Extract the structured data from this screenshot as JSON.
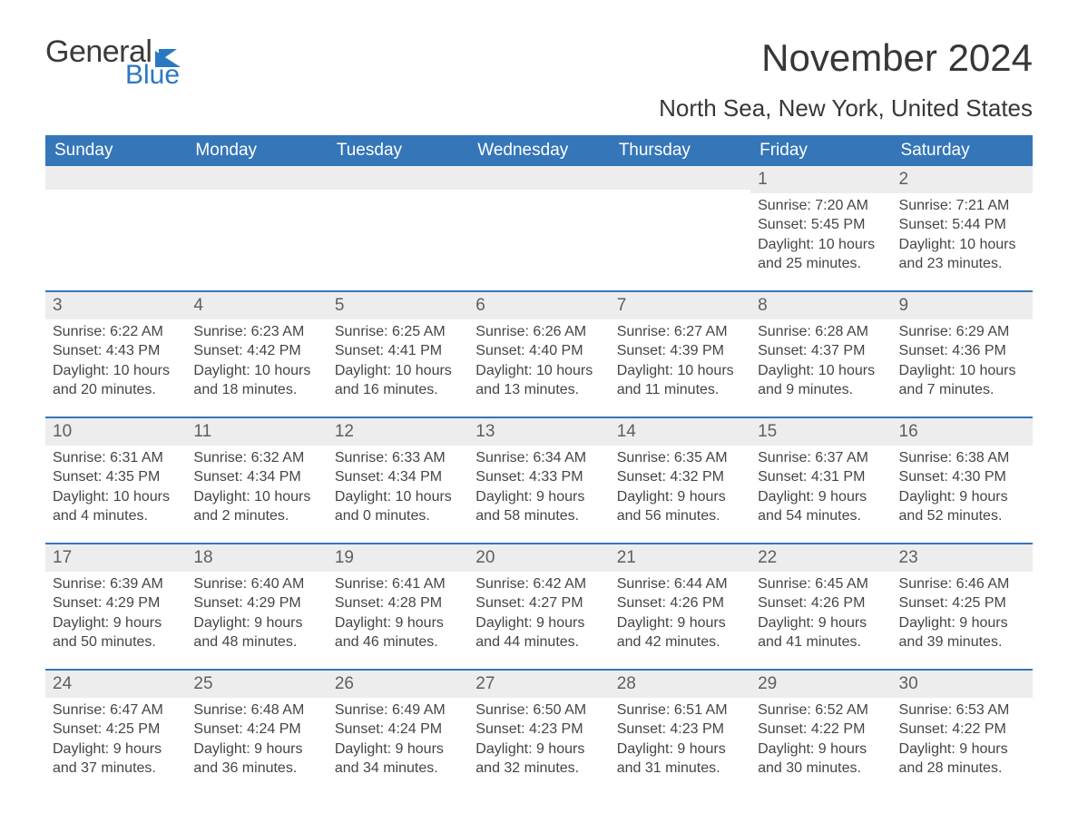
{
  "logo": {
    "word1": "General",
    "word2": "Blue"
  },
  "title": "November 2024",
  "subtitle": "North Sea, New York, United States",
  "colors": {
    "header_bg": "#3576b9",
    "header_fg": "#ffffff",
    "row_divider": "#3576b9",
    "daynum_bg": "#ededed",
    "text": "#454545",
    "logo_blue": "#2b78c2"
  },
  "fonts": {
    "title_size": 42,
    "subtitle_size": 26,
    "dow_size": 19,
    "body_size": 16
  },
  "day_labels": [
    "Sunday",
    "Monday",
    "Tuesday",
    "Wednesday",
    "Thursday",
    "Friday",
    "Saturday"
  ],
  "sunrise_prefix": "Sunrise: ",
  "sunset_prefix": "Sunset: ",
  "daylight_prefix": "Daylight: ",
  "weeks": [
    [
      null,
      null,
      null,
      null,
      null,
      {
        "n": "1",
        "sunrise": "7:20 AM",
        "sunset": "5:45 PM",
        "daylight": "10 hours and 25 minutes."
      },
      {
        "n": "2",
        "sunrise": "7:21 AM",
        "sunset": "5:44 PM",
        "daylight": "10 hours and 23 minutes."
      }
    ],
    [
      {
        "n": "3",
        "sunrise": "6:22 AM",
        "sunset": "4:43 PM",
        "daylight": "10 hours and 20 minutes."
      },
      {
        "n": "4",
        "sunrise": "6:23 AM",
        "sunset": "4:42 PM",
        "daylight": "10 hours and 18 minutes."
      },
      {
        "n": "5",
        "sunrise": "6:25 AM",
        "sunset": "4:41 PM",
        "daylight": "10 hours and 16 minutes."
      },
      {
        "n": "6",
        "sunrise": "6:26 AM",
        "sunset": "4:40 PM",
        "daylight": "10 hours and 13 minutes."
      },
      {
        "n": "7",
        "sunrise": "6:27 AM",
        "sunset": "4:39 PM",
        "daylight": "10 hours and 11 minutes."
      },
      {
        "n": "8",
        "sunrise": "6:28 AM",
        "sunset": "4:37 PM",
        "daylight": "10 hours and 9 minutes."
      },
      {
        "n": "9",
        "sunrise": "6:29 AM",
        "sunset": "4:36 PM",
        "daylight": "10 hours and 7 minutes."
      }
    ],
    [
      {
        "n": "10",
        "sunrise": "6:31 AM",
        "sunset": "4:35 PM",
        "daylight": "10 hours and 4 minutes."
      },
      {
        "n": "11",
        "sunrise": "6:32 AM",
        "sunset": "4:34 PM",
        "daylight": "10 hours and 2 minutes."
      },
      {
        "n": "12",
        "sunrise": "6:33 AM",
        "sunset": "4:34 PM",
        "daylight": "10 hours and 0 minutes."
      },
      {
        "n": "13",
        "sunrise": "6:34 AM",
        "sunset": "4:33 PM",
        "daylight": "9 hours and 58 minutes."
      },
      {
        "n": "14",
        "sunrise": "6:35 AM",
        "sunset": "4:32 PM",
        "daylight": "9 hours and 56 minutes."
      },
      {
        "n": "15",
        "sunrise": "6:37 AM",
        "sunset": "4:31 PM",
        "daylight": "9 hours and 54 minutes."
      },
      {
        "n": "16",
        "sunrise": "6:38 AM",
        "sunset": "4:30 PM",
        "daylight": "9 hours and 52 minutes."
      }
    ],
    [
      {
        "n": "17",
        "sunrise": "6:39 AM",
        "sunset": "4:29 PM",
        "daylight": "9 hours and 50 minutes."
      },
      {
        "n": "18",
        "sunrise": "6:40 AM",
        "sunset": "4:29 PM",
        "daylight": "9 hours and 48 minutes."
      },
      {
        "n": "19",
        "sunrise": "6:41 AM",
        "sunset": "4:28 PM",
        "daylight": "9 hours and 46 minutes."
      },
      {
        "n": "20",
        "sunrise": "6:42 AM",
        "sunset": "4:27 PM",
        "daylight": "9 hours and 44 minutes."
      },
      {
        "n": "21",
        "sunrise": "6:44 AM",
        "sunset": "4:26 PM",
        "daylight": "9 hours and 42 minutes."
      },
      {
        "n": "22",
        "sunrise": "6:45 AM",
        "sunset": "4:26 PM",
        "daylight": "9 hours and 41 minutes."
      },
      {
        "n": "23",
        "sunrise": "6:46 AM",
        "sunset": "4:25 PM",
        "daylight": "9 hours and 39 minutes."
      }
    ],
    [
      {
        "n": "24",
        "sunrise": "6:47 AM",
        "sunset": "4:25 PM",
        "daylight": "9 hours and 37 minutes."
      },
      {
        "n": "25",
        "sunrise": "6:48 AM",
        "sunset": "4:24 PM",
        "daylight": "9 hours and 36 minutes."
      },
      {
        "n": "26",
        "sunrise": "6:49 AM",
        "sunset": "4:24 PM",
        "daylight": "9 hours and 34 minutes."
      },
      {
        "n": "27",
        "sunrise": "6:50 AM",
        "sunset": "4:23 PM",
        "daylight": "9 hours and 32 minutes."
      },
      {
        "n": "28",
        "sunrise": "6:51 AM",
        "sunset": "4:23 PM",
        "daylight": "9 hours and 31 minutes."
      },
      {
        "n": "29",
        "sunrise": "6:52 AM",
        "sunset": "4:22 PM",
        "daylight": "9 hours and 30 minutes."
      },
      {
        "n": "30",
        "sunrise": "6:53 AM",
        "sunset": "4:22 PM",
        "daylight": "9 hours and 28 minutes."
      }
    ]
  ]
}
